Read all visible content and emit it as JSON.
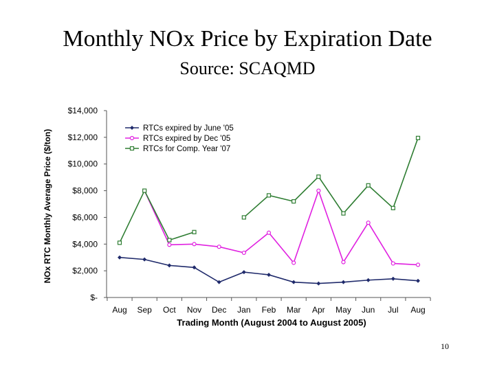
{
  "slide": {
    "title": "Monthly NOx Price by Expiration Date",
    "subtitle": "Source: SCAQMD",
    "page_number": "10"
  },
  "chart_data": {
    "type": "line",
    "xlabel": "Trading Month (August 2004 to August 2005)",
    "ylabel": "NOx RTC Monthly Average Price ($/ton)",
    "categories": [
      "Aug",
      "Sep",
      "Oct",
      "Nov",
      "Dec",
      "Jan",
      "Feb",
      "Mar",
      "Apr",
      "May",
      "Jun",
      "Jul",
      "Aug"
    ],
    "ylim": [
      0,
      14000
    ],
    "y_ticks": [
      0,
      2000,
      4000,
      6000,
      8000,
      10000,
      12000,
      14000
    ],
    "y_tick_labels": [
      "$-",
      "$2,000",
      "$4,000",
      "$6,000",
      "$8,000",
      "$10,000",
      "$12,000",
      "$14,000"
    ],
    "grid": false,
    "legend_position": "top-left",
    "series": [
      {
        "name": "RTCs expired by June '05",
        "color": "#1f2a6b",
        "marker": "diamond",
        "values": [
          3000,
          2850,
          2400,
          2250,
          1150,
          1900,
          1700,
          1150,
          1050,
          1150,
          1300,
          1400,
          1250
        ]
      },
      {
        "name": "RTCs expired by Dec '05",
        "color": "#e020e0",
        "marker": "circle",
        "values": [
          null,
          8000,
          3950,
          4000,
          3800,
          3350,
          4850,
          2600,
          8000,
          2650,
          5600,
          2550,
          2450
        ]
      },
      {
        "name": "RTCs for Comp. Year '07",
        "color": "#2e7d32",
        "marker": "square",
        "values": [
          4100,
          8000,
          4300,
          4900,
          null,
          6000,
          7650,
          7200,
          9050,
          6300,
          8400,
          6700,
          11950
        ]
      }
    ]
  }
}
